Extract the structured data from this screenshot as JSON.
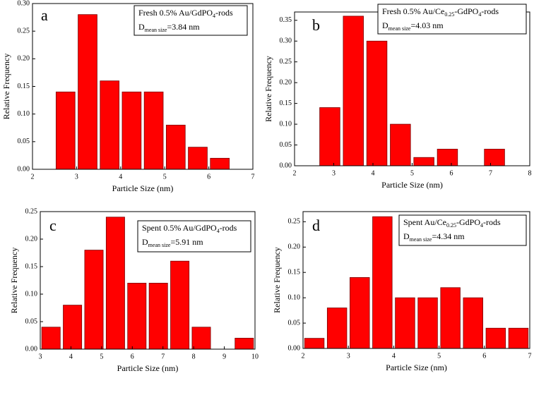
{
  "chart_data": [
    {
      "type": "histogram",
      "label": "a",
      "xlabel": "Particle Size (nm)",
      "ylabel": "Relative Frequency",
      "color": "#ff0000",
      "bins": [
        2.5,
        3.0,
        3.5,
        4.0,
        4.5,
        5.0,
        5.5,
        6.0,
        6.5
      ],
      "values": [
        0.14,
        0.28,
        0.16,
        0.14,
        0.14,
        0.08,
        0.04,
        0.02
      ],
      "xlim": [
        2,
        7
      ],
      "xticks": [
        2,
        3,
        4,
        5,
        6,
        7
      ],
      "ylim": [
        0,
        0.3
      ],
      "yticks": [
        {
          "value": 0,
          "label": "0.00"
        },
        {
          "value": 0.05,
          "label": "0.05"
        },
        {
          "value": 0.1,
          "label": "0.10"
        },
        {
          "value": 0.15,
          "label": "0.15"
        },
        {
          "value": 0.2,
          "label": "0.20"
        },
        {
          "value": 0.25,
          "label": "0.25"
        },
        {
          "value": 0.3,
          "label": "0.30"
        }
      ],
      "annotation": [
        [
          {
            "text": "Fresh 0.5% Au/GdPO"
          },
          {
            "text": "4",
            "sub": true
          },
          {
            "text": "-rods"
          }
        ],
        [
          {
            "text": "D"
          },
          {
            "text": "mean size",
            "sub": true
          },
          {
            "text": "=3.84 nm"
          }
        ]
      ]
    },
    {
      "type": "histogram",
      "label": "b",
      "xlabel": "Particle Size (nm)",
      "ylabel": "Relative Frequency",
      "color": "#ff0000",
      "bins": [
        2.6,
        3.2,
        3.8,
        4.4,
        5.0,
        5.6,
        6.2,
        6.8,
        7.4
      ],
      "values": [
        0.14,
        0.36,
        0.3,
        0.1,
        0.02,
        0.04,
        0,
        0.04
      ],
      "xlim": [
        2,
        8
      ],
      "xticks": [
        2,
        3,
        4,
        5,
        6,
        7,
        8
      ],
      "ylim": [
        0,
        0.37
      ],
      "yticks": [
        {
          "value": 0,
          "label": "0.00"
        },
        {
          "value": 0.05,
          "label": "0.05"
        },
        {
          "value": 0.1,
          "label": "0.10"
        },
        {
          "value": 0.15,
          "label": "0.15"
        },
        {
          "value": 0.2,
          "label": "0.20"
        },
        {
          "value": 0.25,
          "label": "0.25"
        },
        {
          "value": 0.3,
          "label": "0.30"
        },
        {
          "value": 0.35,
          "label": "0.35"
        }
      ],
      "annotation": [
        [
          {
            "text": "Fresh 0.5% Au/Ce"
          },
          {
            "text": "0.25",
            "sub": true
          },
          {
            "text": "-GdPO"
          },
          {
            "text": "4",
            "sub": true
          },
          {
            "text": "-rods"
          }
        ],
        [
          {
            "text": "D"
          },
          {
            "text": "mean size",
            "sub": true
          },
          {
            "text": "=4.03 nm"
          }
        ]
      ]
    },
    {
      "type": "histogram",
      "label": "c",
      "xlabel": "Particle Size (nm)",
      "ylabel": "Relative Frequency",
      "color": "#ff0000",
      "bins": [
        3.0,
        3.7,
        4.4,
        5.1,
        5.8,
        6.5,
        7.2,
        7.9,
        8.6,
        9.3,
        10.0
      ],
      "values": [
        0.04,
        0.08,
        0.18,
        0.24,
        0.12,
        0.12,
        0.16,
        0.04,
        0,
        0.02
      ],
      "xlim": [
        3,
        10
      ],
      "xticks": [
        3,
        4,
        5,
        6,
        7,
        8,
        9,
        10
      ],
      "ylim": [
        0,
        0.25
      ],
      "yticks": [
        {
          "value": 0,
          "label": "0.00"
        },
        {
          "value": 0.05,
          "label": "0.05"
        },
        {
          "value": 0.1,
          "label": "0.10"
        },
        {
          "value": 0.15,
          "label": "0.15"
        },
        {
          "value": 0.2,
          "label": "0.20"
        },
        {
          "value": 0.25,
          "label": "0.25"
        }
      ],
      "annotation": [
        [
          {
            "text": "Spent 0.5% Au/GdPO"
          },
          {
            "text": "4",
            "sub": true
          },
          {
            "text": "-rods"
          }
        ],
        [
          {
            "text": "D"
          },
          {
            "text": "mean size",
            "sub": true
          },
          {
            "text": "=5.91 nm"
          }
        ]
      ]
    },
    {
      "type": "histogram",
      "label": "d",
      "xlabel": "Particle Size (nm)",
      "ylabel": "Relative Frequency",
      "color": "#ff0000",
      "bins": [
        2.0,
        2.5,
        3.0,
        3.5,
        4.0,
        4.5,
        5.0,
        5.5,
        6.0,
        6.5,
        7.0
      ],
      "values": [
        0.02,
        0.08,
        0.14,
        0.26,
        0.1,
        0.1,
        0.12,
        0.1,
        0.04,
        0.04
      ],
      "xlim": [
        2,
        7
      ],
      "xticks": [
        2,
        3,
        4,
        5,
        6,
        7
      ],
      "ylim": [
        0,
        0.27
      ],
      "yticks": [
        {
          "value": 0,
          "label": "0.00"
        },
        {
          "value": 0.05,
          "label": "0.05"
        },
        {
          "value": 0.1,
          "label": "0.10"
        },
        {
          "value": 0.15,
          "label": "0.15"
        },
        {
          "value": 0.2,
          "label": "0.20"
        },
        {
          "value": 0.25,
          "label": "0.25"
        }
      ],
      "annotation": [
        [
          {
            "text": "Spent Au/Ce"
          },
          {
            "text": "0.25",
            "sub": true
          },
          {
            "text": "-GdPO"
          },
          {
            "text": "4",
            "sub": true
          },
          {
            "text": "-rods"
          }
        ],
        [
          {
            "text": "D"
          },
          {
            "text": "mean size",
            "sub": true
          },
          {
            "text": "=4.34 nm"
          }
        ]
      ]
    }
  ]
}
